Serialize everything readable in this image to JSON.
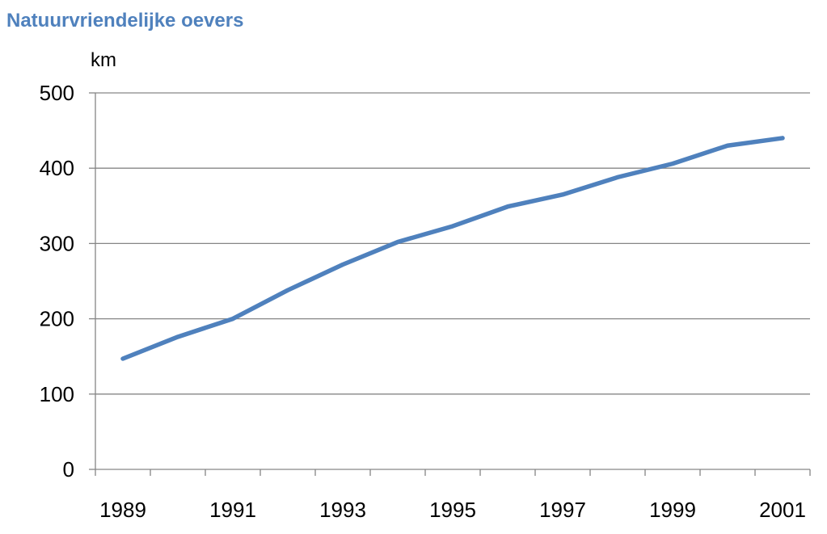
{
  "chart_data": {
    "type": "line",
    "title": "Natuurvriendelijke oevers",
    "ylabel": "km",
    "xlabel": "",
    "x": [
      1989,
      1990,
      1991,
      1992,
      1993,
      1994,
      1995,
      1996,
      1997,
      1998,
      1999,
      2000,
      2001
    ],
    "series": [
      {
        "values": [
          147,
          176,
          200,
          238,
          272,
          302,
          323,
          349,
          365,
          388,
          406,
          430,
          440
        ],
        "color": "#4f81bd"
      }
    ],
    "x_tick_labels": [
      "1989",
      "1991",
      "1993",
      "1995",
      "1997",
      "1999",
      "2001"
    ],
    "y_tick_labels": [
      "0",
      "100",
      "200",
      "300",
      "400",
      "500"
    ],
    "ylim": [
      0,
      500
    ],
    "grid": true,
    "legend": "none"
  }
}
